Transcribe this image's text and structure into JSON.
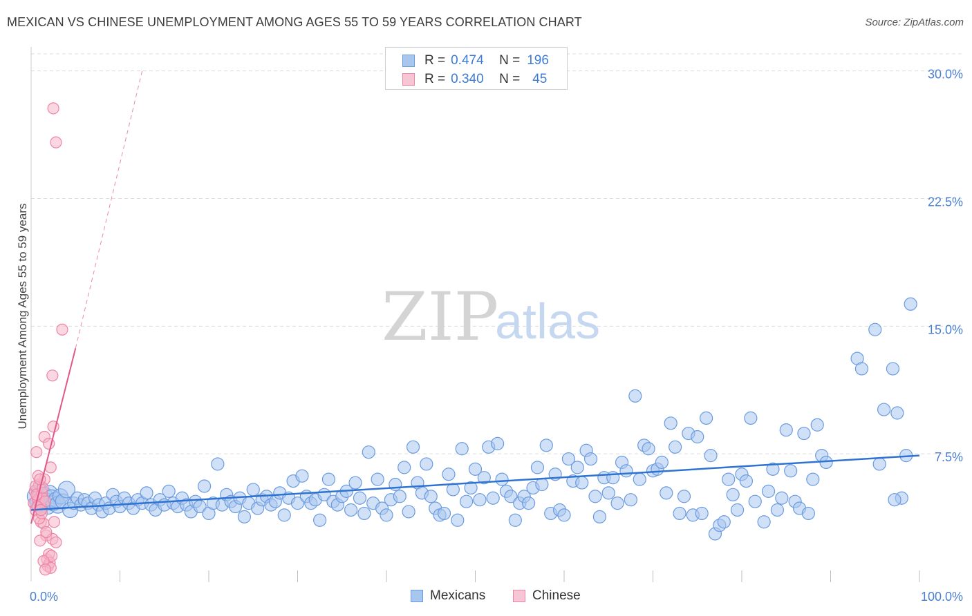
{
  "title": "MEXICAN VS CHINESE UNEMPLOYMENT AMONG AGES 55 TO 59 YEARS CORRELATION CHART",
  "source": "Source: ZipAtlas.com",
  "watermark": {
    "zip": "ZIP",
    "atlas": "atlas"
  },
  "colors": {
    "mexicans_fill": "#a9c6ee",
    "mexicans_stroke": "#6a9be0",
    "mexicans_line": "#2f73d2",
    "chinese_fill": "#f6b6c9",
    "chinese_stroke": "#ec84a6",
    "chinese_line": "#e0588a",
    "grid": "#dcdcdc",
    "axis_text": "#4a7fd0"
  },
  "legend": {
    "rows": [
      {
        "r_label": "R =",
        "r_value": "0.474",
        "n_label": "N =",
        "n_value": "196"
      },
      {
        "r_label": "R =",
        "r_value": "0.340",
        "n_label": "N =",
        "n_value": "45"
      }
    ]
  },
  "bottom_legend": {
    "mexicans": "Mexicans",
    "chinese": "Chinese"
  },
  "chart_data": {
    "type": "scatter",
    "title": "MEXICAN VS CHINESE UNEMPLOYMENT AMONG AGES 55 TO 59 YEARS CORRELATION CHART",
    "xlabel": "",
    "ylabel": "Unemployment Among Ages 55 to 59 years",
    "xlim": [
      0,
      100
    ],
    "ylim": [
      0,
      31
    ],
    "x_tick_labels": [
      "0.0%",
      "100.0%"
    ],
    "y_ticks": [
      7.5,
      15.0,
      22.5,
      30.0
    ],
    "y_tick_labels": [
      "7.5%",
      "15.0%",
      "22.5%",
      "30.0%"
    ],
    "grid": true,
    "series": [
      {
        "name": "Mexicans",
        "r": 0.474,
        "n": 196,
        "trend": {
          "x": [
            0,
            100
          ],
          "y": [
            4.2,
            7.4
          ]
        },
        "points": [
          [
            0.5,
            5.0
          ],
          [
            0.7,
            4.6
          ],
          [
            0.9,
            5.4
          ],
          [
            1.1,
            4.8
          ],
          [
            1.3,
            4.5
          ],
          [
            1.5,
            5.1
          ],
          [
            1.7,
            4.7
          ],
          [
            1.9,
            4.4
          ],
          [
            2.1,
            5.2
          ],
          [
            2.3,
            4.9
          ],
          [
            2.5,
            4.6
          ],
          [
            2.8,
            4.8
          ],
          [
            3.0,
            4.5
          ],
          [
            3.3,
            5.0
          ],
          [
            3.6,
            4.7
          ],
          [
            4.0,
            5.4
          ],
          [
            4.4,
            4.2
          ],
          [
            4.8,
            4.6
          ],
          [
            5.2,
            4.9
          ],
          [
            5.6,
            4.5
          ],
          [
            6.0,
            4.8
          ],
          [
            6.4,
            4.6
          ],
          [
            6.8,
            4.3
          ],
          [
            7.2,
            4.9
          ],
          [
            7.6,
            4.5
          ],
          [
            8.0,
            4.1
          ],
          [
            8.4,
            4.6
          ],
          [
            8.8,
            4.3
          ],
          [
            9.2,
            5.1
          ],
          [
            9.6,
            4.7
          ],
          [
            10.0,
            4.4
          ],
          [
            10.5,
            4.9
          ],
          [
            11.0,
            4.6
          ],
          [
            11.5,
            4.3
          ],
          [
            12.0,
            4.8
          ],
          [
            12.5,
            4.6
          ],
          [
            13.0,
            5.2
          ],
          [
            13.5,
            4.5
          ],
          [
            14.0,
            4.2
          ],
          [
            14.5,
            4.8
          ],
          [
            15.0,
            4.5
          ],
          [
            15.5,
            5.3
          ],
          [
            16.0,
            4.6
          ],
          [
            16.5,
            4.4
          ],
          [
            17.0,
            4.9
          ],
          [
            17.5,
            4.5
          ],
          [
            18.0,
            4.1
          ],
          [
            18.5,
            4.7
          ],
          [
            19.0,
            4.4
          ],
          [
            19.5,
            5.6
          ],
          [
            20.0,
            4.0
          ],
          [
            20.5,
            4.6
          ],
          [
            21.0,
            6.9
          ],
          [
            21.5,
            4.5
          ],
          [
            22.0,
            5.1
          ],
          [
            22.5,
            4.7
          ],
          [
            23.0,
            4.4
          ],
          [
            23.5,
            4.9
          ],
          [
            24.0,
            3.8
          ],
          [
            24.5,
            4.6
          ],
          [
            25.0,
            5.4
          ],
          [
            25.5,
            4.3
          ],
          [
            26.0,
            4.8
          ],
          [
            26.5,
            5.0
          ],
          [
            27.0,
            4.5
          ],
          [
            27.5,
            4.7
          ],
          [
            28.0,
            5.2
          ],
          [
            28.5,
            3.9
          ],
          [
            29.0,
            4.9
          ],
          [
            29.5,
            5.9
          ],
          [
            30.0,
            4.6
          ],
          [
            30.5,
            6.2
          ],
          [
            31.0,
            5.0
          ],
          [
            31.5,
            4.6
          ],
          [
            32.0,
            4.8
          ],
          [
            32.5,
            3.6
          ],
          [
            33.0,
            5.1
          ],
          [
            33.5,
            6.0
          ],
          [
            34.0,
            4.7
          ],
          [
            34.5,
            4.5
          ],
          [
            35.0,
            5.0
          ],
          [
            35.5,
            5.3
          ],
          [
            36.0,
            4.2
          ],
          [
            36.5,
            5.8
          ],
          [
            37.0,
            4.9
          ],
          [
            37.5,
            4.0
          ],
          [
            38.0,
            7.6
          ],
          [
            38.5,
            4.6
          ],
          [
            39.0,
            6.0
          ],
          [
            39.5,
            4.3
          ],
          [
            40.0,
            3.9
          ],
          [
            40.5,
            4.8
          ],
          [
            41.0,
            5.7
          ],
          [
            41.5,
            5.0
          ],
          [
            42.0,
            6.7
          ],
          [
            42.5,
            4.1
          ],
          [
            43.0,
            7.9
          ],
          [
            43.5,
            5.8
          ],
          [
            44.0,
            5.2
          ],
          [
            44.5,
            6.9
          ],
          [
            45.0,
            5.0
          ],
          [
            45.5,
            4.3
          ],
          [
            46.0,
            3.9
          ],
          [
            46.5,
            4.0
          ],
          [
            47.0,
            6.3
          ],
          [
            47.5,
            5.4
          ],
          [
            48.0,
            3.6
          ],
          [
            48.5,
            7.8
          ],
          [
            49.0,
            4.7
          ],
          [
            49.5,
            5.5
          ],
          [
            50.0,
            6.6
          ],
          [
            50.5,
            4.8
          ],
          [
            51.0,
            6.1
          ],
          [
            51.5,
            7.9
          ],
          [
            52.0,
            4.9
          ],
          [
            52.5,
            8.1
          ],
          [
            53.0,
            6.0
          ],
          [
            53.5,
            5.3
          ],
          [
            54.0,
            5.0
          ],
          [
            54.5,
            3.6
          ],
          [
            55.0,
            4.6
          ],
          [
            55.5,
            5.0
          ],
          [
            56.0,
            4.6
          ],
          [
            56.5,
            5.5
          ],
          [
            57.0,
            6.7
          ],
          [
            57.5,
            5.7
          ],
          [
            58.0,
            8.0
          ],
          [
            58.5,
            4.0
          ],
          [
            59.0,
            6.3
          ],
          [
            59.5,
            4.2
          ],
          [
            60.0,
            3.9
          ],
          [
            60.5,
            7.2
          ],
          [
            61.0,
            5.9
          ],
          [
            61.5,
            6.7
          ],
          [
            62.0,
            5.8
          ],
          [
            62.5,
            7.7
          ],
          [
            63.0,
            7.2
          ],
          [
            63.5,
            5.0
          ],
          [
            64.0,
            3.8
          ],
          [
            64.5,
            6.1
          ],
          [
            65.0,
            5.2
          ],
          [
            65.5,
            6.1
          ],
          [
            66.0,
            4.6
          ],
          [
            66.5,
            7.0
          ],
          [
            67.0,
            6.5
          ],
          [
            67.5,
            4.8
          ],
          [
            68.0,
            10.9
          ],
          [
            68.5,
            6.0
          ],
          [
            69.0,
            8.0
          ],
          [
            69.5,
            7.8
          ],
          [
            70.0,
            6.5
          ],
          [
            70.5,
            6.6
          ],
          [
            71.0,
            7.0
          ],
          [
            71.5,
            5.2
          ],
          [
            72.0,
            9.3
          ],
          [
            72.5,
            7.9
          ],
          [
            73.0,
            4.0
          ],
          [
            73.5,
            5.0
          ],
          [
            74.0,
            8.7
          ],
          [
            74.5,
            3.9
          ],
          [
            75.0,
            8.5
          ],
          [
            75.5,
            4.0
          ],
          [
            76.0,
            9.6
          ],
          [
            76.5,
            7.4
          ],
          [
            77.0,
            2.8
          ],
          [
            77.5,
            3.3
          ],
          [
            78.0,
            3.5
          ],
          [
            78.5,
            6.0
          ],
          [
            79.0,
            5.1
          ],
          [
            79.5,
            4.2
          ],
          [
            80.0,
            6.3
          ],
          [
            80.5,
            5.9
          ],
          [
            81.0,
            9.6
          ],
          [
            81.5,
            4.7
          ],
          [
            82.5,
            3.5
          ],
          [
            83.0,
            5.3
          ],
          [
            83.5,
            6.6
          ],
          [
            84.0,
            4.2
          ],
          [
            84.5,
            4.9
          ],
          [
            85.0,
            8.9
          ],
          [
            85.5,
            6.5
          ],
          [
            86.0,
            4.7
          ],
          [
            86.5,
            4.3
          ],
          [
            87.0,
            8.7
          ],
          [
            87.5,
            4.0
          ],
          [
            88.0,
            6.0
          ],
          [
            88.5,
            9.2
          ],
          [
            89.0,
            7.4
          ],
          [
            89.5,
            7.0
          ],
          [
            93.0,
            13.1
          ],
          [
            93.5,
            12.5
          ],
          [
            95.0,
            14.8
          ],
          [
            96.0,
            10.1
          ],
          [
            97.0,
            12.5
          ],
          [
            97.5,
            9.9
          ],
          [
            98.0,
            4.9
          ],
          [
            98.5,
            7.4
          ],
          [
            99.0,
            16.3
          ],
          [
            97.2,
            4.8
          ],
          [
            95.5,
            6.9
          ]
        ]
      },
      {
        "name": "Chinese",
        "r": 0.34,
        "n": 45,
        "trend": {
          "x": [
            0,
            5
          ],
          "y": [
            3.4,
            13.7
          ],
          "extended": {
            "x": [
              5,
              12.5
            ],
            "y": [
              13.7,
              30
            ]
          }
        },
        "points": [
          [
            0.3,
            4.6
          ],
          [
            0.4,
            5.3
          ],
          [
            0.5,
            4.2
          ],
          [
            0.6,
            7.6
          ],
          [
            0.7,
            5.0
          ],
          [
            0.8,
            4.8
          ],
          [
            0.9,
            5.7
          ],
          [
            1.0,
            4.5
          ],
          [
            1.1,
            3.5
          ],
          [
            1.2,
            5.2
          ],
          [
            1.3,
            4.9
          ],
          [
            1.4,
            3.4
          ],
          [
            1.5,
            6.0
          ],
          [
            1.6,
            4.7
          ],
          [
            1.7,
            2.7
          ],
          [
            1.8,
            1.3
          ],
          [
            1.9,
            0.9
          ],
          [
            2.0,
            1.6
          ],
          [
            2.1,
            1.1
          ],
          [
            2.2,
            0.8
          ],
          [
            2.3,
            1.5
          ],
          [
            2.4,
            2.5
          ],
          [
            1.5,
            8.5
          ],
          [
            2.0,
            8.1
          ],
          [
            2.2,
            6.7
          ],
          [
            2.4,
            12.1
          ],
          [
            2.5,
            9.1
          ],
          [
            2.6,
            3.5
          ],
          [
            2.8,
            2.3
          ],
          [
            2.5,
            27.8
          ],
          [
            2.8,
            25.8
          ],
          [
            3.5,
            14.8
          ],
          [
            0.5,
            5.6
          ],
          [
            0.6,
            5.1
          ],
          [
            0.7,
            4.4
          ],
          [
            0.9,
            3.7
          ],
          [
            1.0,
            2.4
          ],
          [
            1.2,
            4.0
          ],
          [
            1.3,
            5.5
          ],
          [
            1.4,
            1.2
          ],
          [
            1.6,
            0.7
          ],
          [
            1.7,
            2.9
          ],
          [
            0.8,
            6.2
          ],
          [
            1.0,
            6.0
          ],
          [
            1.1,
            4.2
          ]
        ]
      }
    ]
  }
}
